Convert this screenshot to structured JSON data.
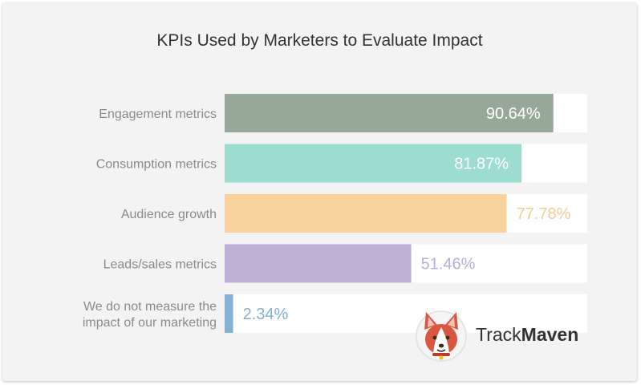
{
  "chart_data": {
    "type": "bar",
    "orientation": "horizontal",
    "title": "KPIs Used by Marketers to Evaluate Impact",
    "categories": [
      [
        "Engagement metrics"
      ],
      [
        "Consumption metrics"
      ],
      [
        "Audience growth"
      ],
      [
        "Leads/sales metrics"
      ],
      [
        "We do not measure the",
        "impact of our marketing"
      ]
    ],
    "values": [
      90.64,
      81.87,
      77.78,
      51.46,
      2.34
    ],
    "value_labels": [
      "90.64%",
      "81.87%",
      "77.78%",
      "51.46%",
      "2.34%"
    ],
    "xlim": [
      0,
      100
    ],
    "bar_colors": [
      "#97a898",
      "#9ddcd0",
      "#f7d29c",
      "#bdb1d6",
      "#86b2d2"
    ],
    "label_colors": [
      "#ffffff",
      "#ffffff",
      "#f3cd95",
      "#b9addb",
      "#7fb0d6"
    ],
    "track_color": "#ffffff"
  },
  "brand": {
    "name_part1": "Track",
    "name_part2": "Maven",
    "logo_icon": "corgi-mascot-icon"
  }
}
